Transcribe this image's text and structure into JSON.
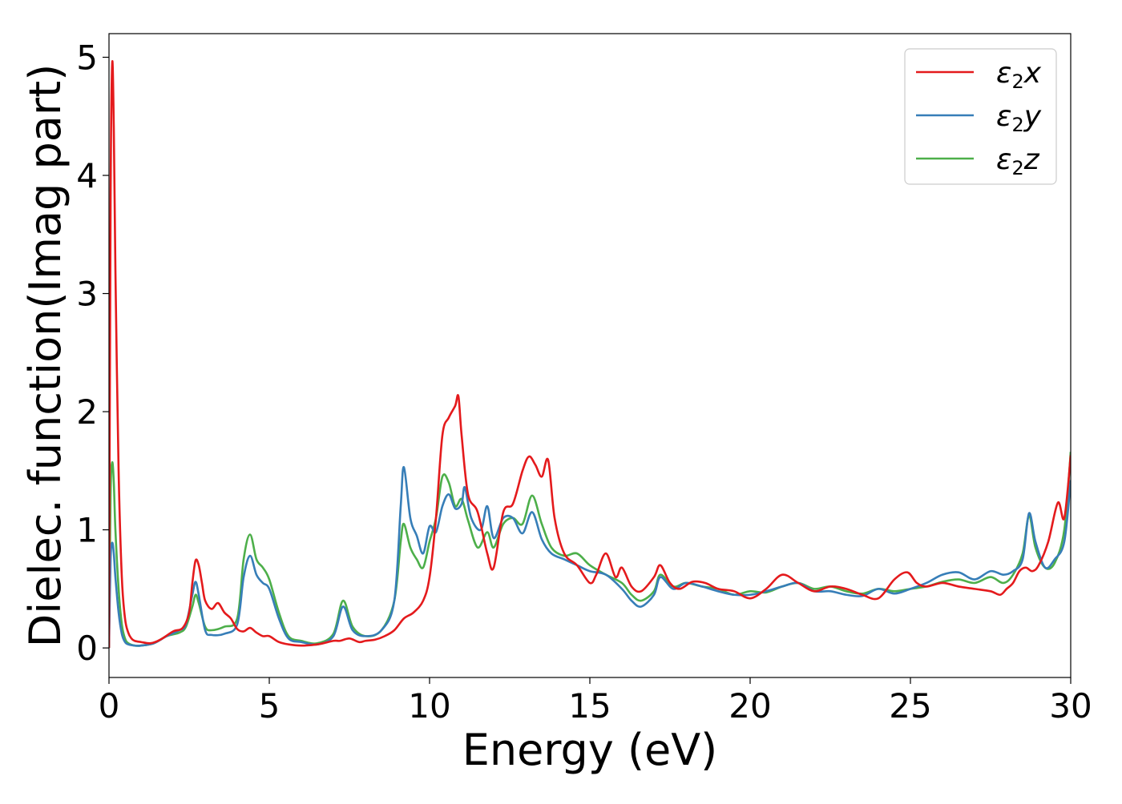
{
  "chart_data": {
    "type": "line",
    "title": "",
    "xlabel": "Energy (eV)",
    "ylabel": "Dielec. function(Imag part)",
    "xlim": [
      0,
      30
    ],
    "ylim": [
      -0.25,
      5.2
    ],
    "xticks": [
      0,
      5,
      10,
      15,
      20,
      25,
      30
    ],
    "yticks": [
      0,
      1,
      2,
      3,
      4,
      5
    ],
    "legend_position": "top-right",
    "grid": false,
    "series": [
      {
        "name": "ε₂x",
        "label_main": "ε",
        "label_sub": "2",
        "label_axis": "x",
        "color": "#e41a1c",
        "x": [
          0,
          0.05,
          0.1,
          0.15,
          0.2,
          0.3,
          0.4,
          0.5,
          0.6,
          0.7,
          0.8,
          1.0,
          1.3,
          1.6,
          2.0,
          2.3,
          2.5,
          2.6,
          2.7,
          2.8,
          2.9,
          3.0,
          3.2,
          3.4,
          3.6,
          3.8,
          4.0,
          4.2,
          4.4,
          4.6,
          4.8,
          5.0,
          5.3,
          5.6,
          6.0,
          6.5,
          7.0,
          7.2,
          7.5,
          7.8,
          8.0,
          8.3,
          8.6,
          8.9,
          9.2,
          9.5,
          9.8,
          10.0,
          10.2,
          10.4,
          10.6,
          10.8,
          10.9,
          11.0,
          11.2,
          11.5,
          11.8,
          12.0,
          12.3,
          12.6,
          12.9,
          13.1,
          13.3,
          13.5,
          13.7,
          13.9,
          14.2,
          14.6,
          15.0,
          15.2,
          15.5,
          15.8,
          16.0,
          16.3,
          16.6,
          17.0,
          17.2,
          17.5,
          17.8,
          18.2,
          18.6,
          19.0,
          19.5,
          20.0,
          20.5,
          21.0,
          21.5,
          22.0,
          22.5,
          23.0,
          23.5,
          24.0,
          24.5,
          24.9,
          25.2,
          25.5,
          26.0,
          26.5,
          27.0,
          27.5,
          27.8,
          28.0,
          28.2,
          28.4,
          28.6,
          28.8,
          29.0,
          29.3,
          29.6,
          29.8,
          30.0
        ],
        "y": [
          0,
          3.8,
          4.95,
          4.4,
          3.2,
          1.5,
          0.6,
          0.25,
          0.13,
          0.08,
          0.06,
          0.05,
          0.04,
          0.07,
          0.14,
          0.17,
          0.3,
          0.55,
          0.74,
          0.7,
          0.55,
          0.4,
          0.33,
          0.38,
          0.3,
          0.25,
          0.16,
          0.14,
          0.17,
          0.13,
          0.1,
          0.1,
          0.05,
          0.03,
          0.02,
          0.03,
          0.06,
          0.06,
          0.08,
          0.05,
          0.06,
          0.07,
          0.1,
          0.15,
          0.25,
          0.3,
          0.4,
          0.6,
          1.1,
          1.8,
          1.95,
          2.05,
          2.13,
          1.8,
          1.3,
          1.15,
          0.8,
          0.68,
          1.15,
          1.22,
          1.5,
          1.62,
          1.55,
          1.45,
          1.59,
          1.1,
          0.8,
          0.7,
          0.55,
          0.62,
          0.8,
          0.6,
          0.68,
          0.52,
          0.48,
          0.6,
          0.7,
          0.55,
          0.5,
          0.56,
          0.55,
          0.5,
          0.48,
          0.42,
          0.5,
          0.62,
          0.55,
          0.48,
          0.52,
          0.5,
          0.45,
          0.42,
          0.58,
          0.64,
          0.55,
          0.52,
          0.55,
          0.52,
          0.5,
          0.48,
          0.45,
          0.5,
          0.55,
          0.65,
          0.68,
          0.65,
          0.7,
          0.9,
          1.23,
          1.1,
          1.63
        ]
      },
      {
        "name": "ε₂y",
        "label_main": "ε",
        "label_sub": "2",
        "label_axis": "y",
        "color": "#377eb8",
        "x": [
          0,
          0.05,
          0.1,
          0.15,
          0.2,
          0.3,
          0.4,
          0.5,
          0.6,
          0.8,
          1.0,
          1.4,
          1.8,
          2.2,
          2.4,
          2.6,
          2.7,
          2.8,
          3.0,
          3.2,
          3.6,
          4.0,
          4.2,
          4.4,
          4.6,
          4.8,
          5.0,
          5.3,
          5.6,
          6.0,
          6.5,
          7.0,
          7.3,
          7.6,
          8.0,
          8.5,
          8.9,
          9.1,
          9.2,
          9.4,
          9.6,
          9.8,
          10.0,
          10.2,
          10.4,
          10.6,
          10.8,
          11.0,
          11.1,
          11.3,
          11.6,
          11.8,
          12.0,
          12.3,
          12.6,
          12.9,
          13.2,
          13.5,
          13.8,
          14.2,
          14.6,
          15.0,
          15.5,
          16.0,
          16.3,
          16.6,
          17.0,
          17.2,
          17.6,
          18.0,
          18.5,
          19.0,
          19.5,
          20.0,
          20.5,
          21.0,
          21.5,
          22.0,
          22.5,
          23.0,
          23.5,
          24.0,
          24.5,
          25.0,
          25.5,
          26.0,
          26.5,
          27.0,
          27.5,
          27.9,
          28.2,
          28.5,
          28.7,
          28.9,
          29.2,
          29.5,
          29.8,
          30.0
        ],
        "y": [
          0,
          0.75,
          0.89,
          0.8,
          0.6,
          0.3,
          0.12,
          0.05,
          0.03,
          0.02,
          0.02,
          0.04,
          0.1,
          0.15,
          0.2,
          0.45,
          0.56,
          0.45,
          0.15,
          0.11,
          0.12,
          0.2,
          0.6,
          0.78,
          0.62,
          0.55,
          0.5,
          0.25,
          0.08,
          0.05,
          0.03,
          0.1,
          0.35,
          0.15,
          0.1,
          0.15,
          0.4,
          1.2,
          1.53,
          1.1,
          0.95,
          0.8,
          1.03,
          0.98,
          1.2,
          1.3,
          1.18,
          1.22,
          1.36,
          1.1,
          1.0,
          1.2,
          0.93,
          1.1,
          1.1,
          0.97,
          1.15,
          0.92,
          0.8,
          0.75,
          0.7,
          0.65,
          0.62,
          0.5,
          0.4,
          0.35,
          0.45,
          0.6,
          0.5,
          0.55,
          0.52,
          0.48,
          0.45,
          0.45,
          0.48,
          0.52,
          0.55,
          0.48,
          0.48,
          0.45,
          0.44,
          0.5,
          0.46,
          0.5,
          0.55,
          0.62,
          0.64,
          0.58,
          0.65,
          0.62,
          0.65,
          0.75,
          1.14,
          0.9,
          0.68,
          0.75,
          0.9,
          1.42
        ]
      },
      {
        "name": "ε₂z",
        "label_main": "ε",
        "label_sub": "2",
        "label_axis": "z",
        "color": "#4daf4a",
        "x": [
          0,
          0.05,
          0.1,
          0.15,
          0.2,
          0.3,
          0.4,
          0.5,
          0.6,
          0.8,
          1.0,
          1.4,
          1.8,
          2.2,
          2.4,
          2.6,
          2.7,
          2.8,
          3.0,
          3.2,
          3.6,
          4.0,
          4.2,
          4.4,
          4.6,
          4.8,
          5.0,
          5.3,
          5.6,
          6.0,
          6.5,
          7.0,
          7.3,
          7.6,
          8.0,
          8.5,
          8.9,
          9.1,
          9.2,
          9.4,
          9.6,
          9.8,
          10.0,
          10.2,
          10.4,
          10.6,
          10.8,
          11.0,
          11.2,
          11.5,
          11.8,
          12.0,
          12.3,
          12.6,
          12.9,
          13.2,
          13.5,
          13.8,
          14.2,
          14.6,
          15.0,
          15.5,
          16.0,
          16.3,
          16.6,
          17.0,
          17.2,
          17.6,
          18.0,
          18.5,
          19.0,
          19.5,
          20.0,
          20.5,
          21.0,
          21.5,
          22.0,
          22.5,
          23.0,
          23.5,
          24.0,
          24.5,
          25.0,
          25.5,
          26.0,
          26.5,
          27.0,
          27.5,
          27.9,
          28.2,
          28.5,
          28.7,
          28.9,
          29.2,
          29.5,
          29.8,
          30.0
        ],
        "y": [
          0,
          1.3,
          1.57,
          1.4,
          1.0,
          0.5,
          0.2,
          0.08,
          0.04,
          0.02,
          0.02,
          0.04,
          0.1,
          0.13,
          0.18,
          0.35,
          0.45,
          0.38,
          0.18,
          0.15,
          0.18,
          0.25,
          0.75,
          0.96,
          0.75,
          0.68,
          0.58,
          0.3,
          0.1,
          0.06,
          0.04,
          0.12,
          0.4,
          0.18,
          0.1,
          0.15,
          0.4,
          0.9,
          1.05,
          0.85,
          0.75,
          0.68,
          0.9,
          1.1,
          1.45,
          1.4,
          1.2,
          1.26,
          1.08,
          0.85,
          0.98,
          0.85,
          1.05,
          1.1,
          1.05,
          1.29,
          1.05,
          0.85,
          0.78,
          0.8,
          0.7,
          0.62,
          0.55,
          0.45,
          0.4,
          0.48,
          0.62,
          0.52,
          0.55,
          0.52,
          0.5,
          0.45,
          0.48,
          0.47,
          0.52,
          0.55,
          0.5,
          0.52,
          0.48,
          0.46,
          0.5,
          0.48,
          0.5,
          0.52,
          0.56,
          0.58,
          0.55,
          0.6,
          0.55,
          0.62,
          0.8,
          1.12,
          0.85,
          0.68,
          0.72,
          1.0,
          1.66
        ]
      }
    ]
  }
}
